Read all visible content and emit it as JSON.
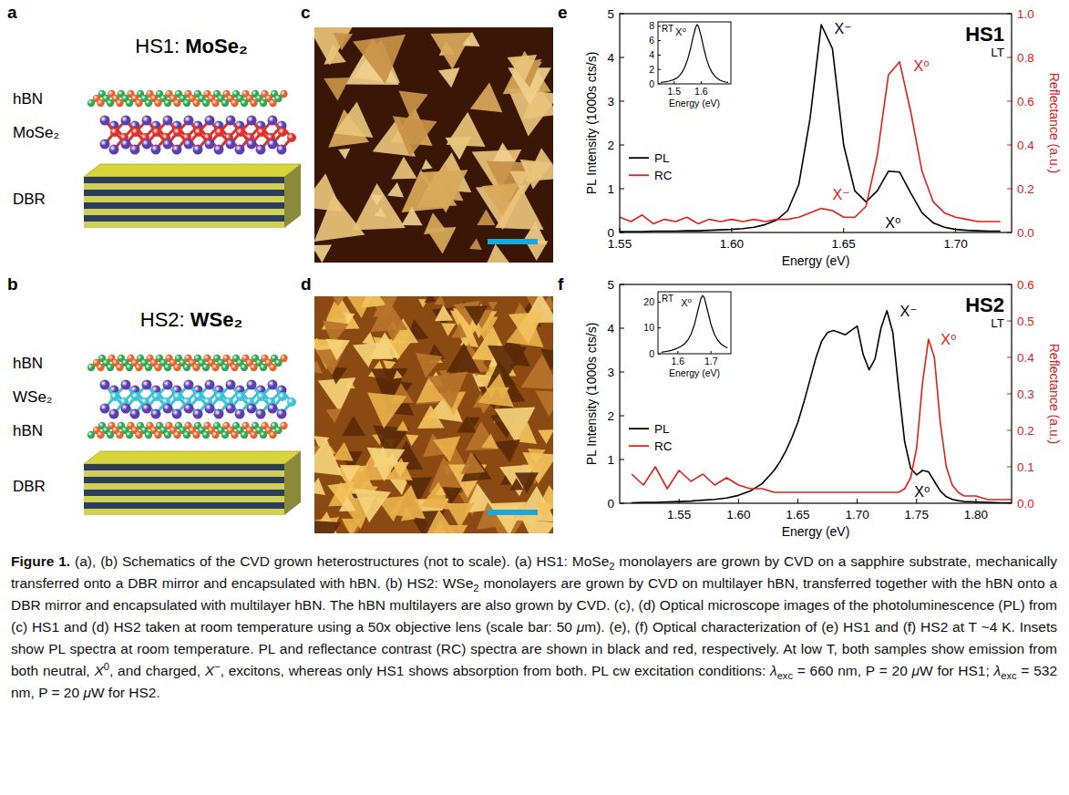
{
  "panels": [
    "a",
    "b",
    "c",
    "d",
    "e",
    "f"
  ],
  "schematics": [
    {
      "title": "HS1:",
      "material": "MoSe₂",
      "color": "#e0302a",
      "layers": [
        {
          "label": "hBN",
          "type": "lattice"
        },
        {
          "label": "MoSe₂",
          "type": "tmd"
        },
        {
          "label": "DBR",
          "type": "mirror"
        }
      ]
    },
    {
      "title": "HS2:",
      "material": "WSe₂",
      "color": "#3cc3d9",
      "layers": [
        {
          "label": "hBN",
          "type": "lattice"
        },
        {
          "label": "WSe₂",
          "type": "tmd"
        },
        {
          "label": "hBN",
          "type": "lattice"
        },
        {
          "label": "DBR",
          "type": "mirror"
        }
      ]
    }
  ],
  "chart_data": [
    {
      "type": "line",
      "title": "HS1",
      "subtitle": "LT",
      "xlabel": "Energy (eV)",
      "ylabel": "PL Intensity (1000s cts/s)",
      "y2label": "Reflectance (a.u.)",
      "x": [
        1.55,
        1.555,
        1.56,
        1.565,
        1.57,
        1.575,
        1.58,
        1.585,
        1.59,
        1.595,
        1.6,
        1.605,
        1.61,
        1.615,
        1.62,
        1.625,
        1.63,
        1.635,
        1.64,
        1.645,
        1.65,
        1.655,
        1.66,
        1.665,
        1.67,
        1.675,
        1.68,
        1.685,
        1.69,
        1.695,
        1.7,
        1.705,
        1.71,
        1.715,
        1.72
      ],
      "xlim": [
        1.55,
        1.725
      ],
      "xticks": [
        1.55,
        {
          "value": 1.6,
          "label": "1.60"
        },
        1.65,
        {
          "value": 1.7,
          "label": "1.70"
        }
      ],
      "ylim": [
        0,
        5
      ],
      "yticks": [
        0,
        1,
        2,
        3,
        4,
        5
      ],
      "y2lim": [
        0,
        1
      ],
      "y2ticks": [
        {
          "value": 0,
          "label": "0.0"
        },
        0.2,
        0.4,
        0.6,
        0.8,
        {
          "value": 1,
          "label": "1.0"
        }
      ],
      "legend": "center left",
      "series": [
        {
          "name": "PL",
          "color": "#000000",
          "values": [
            0.02,
            0.02,
            0.02,
            0.03,
            0.03,
            0.03,
            0.04,
            0.04,
            0.05,
            0.06,
            0.07,
            0.09,
            0.12,
            0.18,
            0.28,
            0.5,
            1.1,
            2.6,
            4.75,
            4.2,
            2.0,
            0.95,
            0.7,
            0.95,
            1.4,
            1.38,
            0.9,
            0.45,
            0.22,
            0.12,
            0.07,
            0.05,
            0.04,
            0.03,
            0.03
          ]
        },
        {
          "name": "RC",
          "color": "#e0201b",
          "axis": "y2",
          "values": [
            0.07,
            0.05,
            0.08,
            0.04,
            0.06,
            0.05,
            0.07,
            0.04,
            0.06,
            0.05,
            0.06,
            0.05,
            0.06,
            0.05,
            0.06,
            0.06,
            0.07,
            0.09,
            0.11,
            0.1,
            0.07,
            0.07,
            0.12,
            0.35,
            0.72,
            0.78,
            0.55,
            0.28,
            0.14,
            0.09,
            0.07,
            0.06,
            0.05,
            0.05,
            0.05
          ]
        }
      ],
      "annotations": [
        {
          "text": "X⁻",
          "series": 0,
          "x": 1.64
        },
        {
          "text": "X⁰",
          "series": 1,
          "x": 1.675
        },
        {
          "text": "X⁻",
          "series": 1,
          "x": 1.64
        },
        {
          "text": "X⁰",
          "series": 0,
          "x": 1.672
        }
      ],
      "inset": {
        "label": "RT",
        "xlabel": "Energy (eV)",
        "annotation": {
          "text": "X⁰",
          "x": 1.585
        },
        "x": [
          1.45,
          1.46,
          1.47,
          1.48,
          1.49,
          1.5,
          1.51,
          1.52,
          1.53,
          1.54,
          1.55,
          1.56,
          1.57,
          1.58,
          1.585,
          1.59,
          1.6,
          1.61,
          1.62,
          1.63,
          1.64,
          1.65,
          1.66,
          1.67,
          1.68,
          1.69,
          1.7
        ],
        "values": [
          0.2,
          0.25,
          0.3,
          0.38,
          0.48,
          0.62,
          0.82,
          1.15,
          1.65,
          2.4,
          3.4,
          4.8,
          6.5,
          7.9,
          8.2,
          7.95,
          6.6,
          4.9,
          3.4,
          2.35,
          1.6,
          1.1,
          0.75,
          0.5,
          0.35,
          0.25,
          0.2
        ],
        "xlim": [
          1.44,
          1.71
        ],
        "xticks": [
          1.5,
          1.6
        ],
        "ylim": [
          0,
          8.6
        ],
        "yticks": [
          0,
          2,
          4,
          6,
          8
        ]
      }
    },
    {
      "type": "line",
      "title": "HS2",
      "subtitle": "LT",
      "xlabel": "Energy (eV)",
      "ylabel": "PL Intensity (1000s cts/s)",
      "y2label": "Reflectance (a.u.)",
      "x": [
        1.51,
        1.52,
        1.53,
        1.54,
        1.55,
        1.56,
        1.57,
        1.58,
        1.59,
        1.6,
        1.61,
        1.62,
        1.63,
        1.635,
        1.64,
        1.645,
        1.65,
        1.655,
        1.66,
        1.665,
        1.67,
        1.675,
        1.68,
        1.685,
        1.69,
        1.695,
        1.7,
        1.705,
        1.71,
        1.715,
        1.72,
        1.725,
        1.73,
        1.735,
        1.74,
        1.745,
        1.75,
        1.755,
        1.76,
        1.765,
        1.77,
        1.775,
        1.78,
        1.785,
        1.79,
        1.8,
        1.81,
        1.82,
        1.83
      ],
      "xlim": [
        1.5,
        1.83
      ],
      "xticks": [
        1.55,
        {
          "value": 1.6,
          "label": "1.60"
        },
        1.65,
        {
          "value": 1.7,
          "label": "1.70"
        },
        1.75,
        {
          "value": 1.8,
          "label": "1.80"
        }
      ],
      "ylim": [
        0,
        5
      ],
      "yticks": [
        0,
        1,
        2,
        3,
        4,
        5
      ],
      "y2lim": [
        0,
        0.6
      ],
      "y2ticks": [
        {
          "value": 0,
          "label": "0.0"
        },
        0.1,
        0.2,
        0.3,
        0.4,
        0.5,
        0.6
      ],
      "legend": "center left",
      "series": [
        {
          "name": "PL",
          "color": "#000000",
          "values": [
            0.01,
            0.02,
            0.02,
            0.03,
            0.04,
            0.05,
            0.07,
            0.09,
            0.12,
            0.18,
            0.28,
            0.45,
            0.75,
            0.95,
            1.2,
            1.5,
            1.85,
            2.3,
            2.8,
            3.3,
            3.7,
            3.9,
            3.95,
            3.9,
            3.85,
            3.95,
            4.05,
            3.4,
            3.05,
            3.3,
            4.0,
            4.4,
            3.9,
            2.6,
            1.4,
            0.8,
            0.65,
            0.75,
            0.72,
            0.5,
            0.28,
            0.15,
            0.09,
            0.06,
            0.04,
            0.03,
            0.02,
            0.01,
            0.01
          ]
        },
        {
          "name": "RC",
          "color": "#e0201b",
          "axis": "y2",
          "values": [
            0.08,
            0.05,
            0.1,
            0.04,
            0.09,
            0.06,
            0.08,
            0.05,
            0.07,
            0.05,
            0.04,
            0.04,
            0.03,
            0.03,
            0.03,
            0.03,
            0.03,
            0.03,
            0.03,
            0.03,
            0.03,
            0.03,
            0.03,
            0.03,
            0.03,
            0.03,
            0.03,
            0.03,
            0.03,
            0.03,
            0.03,
            0.03,
            0.03,
            0.03,
            0.04,
            0.07,
            0.15,
            0.33,
            0.45,
            0.4,
            0.22,
            0.1,
            0.05,
            0.03,
            0.02,
            0.02,
            0.01,
            0.01,
            0.01
          ]
        }
      ],
      "annotations": [
        {
          "text": "X⁻",
          "series": 0,
          "x": 1.725
        },
        {
          "text": "X⁰",
          "series": 1,
          "x": 1.76
        },
        {
          "text": "X⁰",
          "series": 0,
          "x": 1.76
        }
      ],
      "inset": {
        "label": "RT",
        "xlabel": "Energy (eV)",
        "annotation": {
          "text": "X⁰",
          "x": 1.675
        },
        "x": [
          1.55,
          1.56,
          1.57,
          1.58,
          1.59,
          1.6,
          1.61,
          1.62,
          1.63,
          1.64,
          1.65,
          1.66,
          1.67,
          1.675,
          1.68,
          1.69,
          1.7,
          1.71,
          1.72,
          1.73,
          1.74,
          1.75
        ],
        "values": [
          0.6,
          0.8,
          1.0,
          1.3,
          1.7,
          2.2,
          2.9,
          3.8,
          5.3,
          7.6,
          11.3,
          16.5,
          21.6,
          22.5,
          21.6,
          16.5,
          11.3,
          7.6,
          5.3,
          3.8,
          2.9,
          2.2
        ],
        "xlim": [
          1.54,
          1.76
        ],
        "xticks": [
          1.6,
          1.7
        ],
        "ylim": [
          0,
          24
        ],
        "yticks": [
          0,
          10,
          20
        ]
      }
    }
  ],
  "caption": {
    "runs": [
      {
        "text": "Figure 1.",
        "style": "bold"
      },
      {
        "text": " (a), (b) Schematics of the CVD grown heterostructures (not to scale). (a) HS1: MoSe",
        "style": "normal"
      },
      {
        "text": "2",
        "style": "sub"
      },
      {
        "text": " monolayers are grown by CVD on a sapphire substrate, mechanically transferred onto a DBR mirror and encapsulated with hBN. (b) HS2: WSe",
        "style": "normal"
      },
      {
        "text": "2",
        "style": "sub"
      },
      {
        "text": " monolayers are grown by CVD on multilayer hBN, transferred together with the hBN onto a DBR mirror and encapsulated with multilayer hBN. The hBN multilayers are also grown by CVD. (c), (d) Optical microscope images of the photoluminescence (PL) from (c) HS1 and (d) HS2 taken at room temperature using a 50x objective lens (scale bar: 50 ",
        "style": "normal"
      },
      {
        "text": "μ",
        "style": "italic"
      },
      {
        "text": "m). (e), (f) Optical characterization of (e) HS1 and (f) HS2 at T ~4 K. Insets show PL spectra at room temperature. PL and reflectance contrast (RC) spectra are shown in black and red, respectively. At low T, both samples show emission from both neutral, ",
        "style": "normal"
      },
      {
        "text": "X",
        "style": "italic"
      },
      {
        "text": "0",
        "style": "sup"
      },
      {
        "text": ", and charged, ",
        "style": "normal"
      },
      {
        "text": "X",
        "style": "italic"
      },
      {
        "text": "−",
        "style": "sup"
      },
      {
        "text": ", excitons, whereas only HS1 shows absorption from both. PL cw excitation conditions: ",
        "style": "normal"
      },
      {
        "text": "λ",
        "style": "italic"
      },
      {
        "text": "exc",
        "style": "sub"
      },
      {
        "text": " = 660 nm, P = 20 ",
        "style": "normal"
      },
      {
        "text": "μ",
        "style": "italic"
      },
      {
        "text": "W for HS1; ",
        "style": "normal"
      },
      {
        "text": "λ",
        "style": "italic"
      },
      {
        "text": "exc",
        "style": "sub"
      },
      {
        "text": " = 532 nm, P = 20 ",
        "style": "normal"
      },
      {
        "text": "μ",
        "style": "italic"
      },
      {
        "text": "W for HS2.",
        "style": "normal"
      }
    ]
  }
}
